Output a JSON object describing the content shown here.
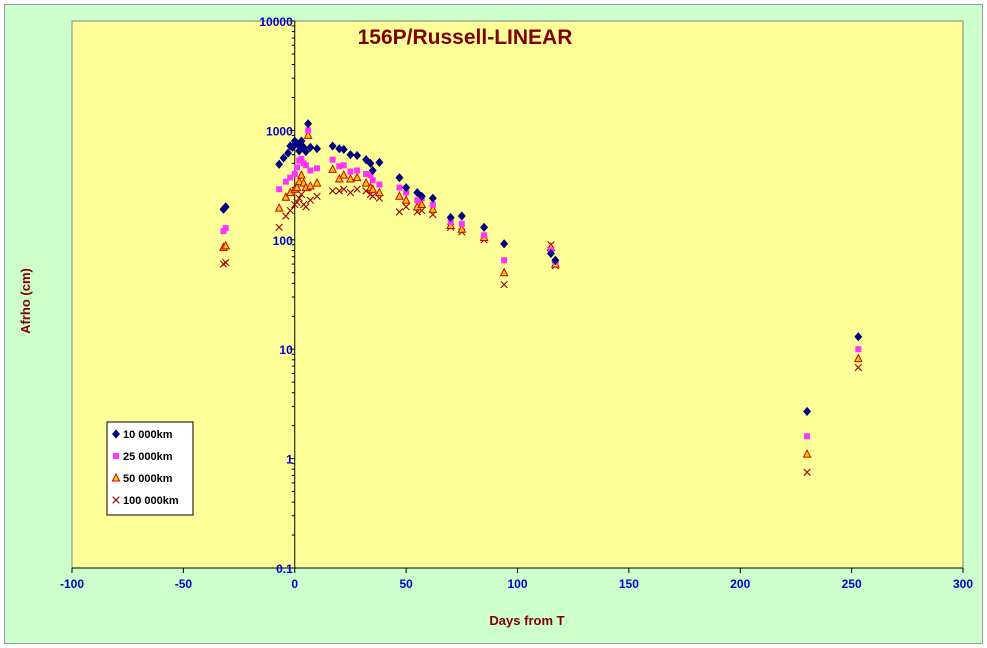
{
  "chart_data": {
    "type": "scatter",
    "title": "156P/Russell-LINEAR",
    "xlabel": "Days from  T",
    "ylabel": "Afrho (cm)",
    "xlim": [
      -100,
      300
    ],
    "ylim": [
      0.1,
      10000
    ],
    "yscale": "log",
    "x_ticks": [
      -100,
      -50,
      0,
      50,
      100,
      150,
      200,
      250,
      300
    ],
    "x_tick_labels": [
      "-100",
      "-50",
      "0",
      "50",
      "100",
      "150",
      "200",
      "250",
      "300"
    ],
    "y_ticks": [
      0.1,
      1,
      10,
      100,
      1000,
      10000
    ],
    "y_tick_labels": [
      "0.1",
      "1",
      "10",
      "100",
      "1000",
      "10000"
    ],
    "grid": false,
    "legend_position": "bottom-left",
    "colors": {
      "plot_background": "#ffff99",
      "chart_background": "#ccffcc",
      "title": "#800000",
      "tick_labels": "#0000cc"
    },
    "series": [
      {
        "name": "10 000km",
        "marker": "diamond",
        "color": "#000080",
        "points": [
          [
            -32,
            190
          ],
          [
            -31,
            200
          ],
          [
            -7,
            490
          ],
          [
            -5,
            560
          ],
          [
            -3,
            620
          ],
          [
            -2,
            720
          ],
          [
            -1,
            700
          ],
          [
            0,
            800
          ],
          [
            1,
            760
          ],
          [
            2,
            720
          ],
          [
            2,
            650
          ],
          [
            3,
            800
          ],
          [
            4,
            700
          ],
          [
            5,
            640
          ],
          [
            6,
            1150
          ],
          [
            7,
            700
          ],
          [
            10,
            680
          ],
          [
            17,
            720
          ],
          [
            20,
            680
          ],
          [
            22,
            670
          ],
          [
            25,
            600
          ],
          [
            28,
            590
          ],
          [
            32,
            540
          ],
          [
            34,
            500
          ],
          [
            35,
            430
          ],
          [
            38,
            510
          ],
          [
            47,
            370
          ],
          [
            50,
            300
          ],
          [
            55,
            270
          ],
          [
            57,
            250
          ],
          [
            62,
            240
          ],
          [
            70,
            160
          ],
          [
            75,
            165
          ],
          [
            85,
            130
          ],
          [
            94,
            92
          ],
          [
            115,
            75
          ],
          [
            117,
            65
          ],
          [
            230,
            2.7
          ],
          [
            253,
            13
          ]
        ]
      },
      {
        "name": "25 000km",
        "marker": "square",
        "color": "#ff33ff",
        "points": [
          [
            -32,
            120
          ],
          [
            -31,
            128
          ],
          [
            -7,
            290
          ],
          [
            -4,
            340
          ],
          [
            -2,
            370
          ],
          [
            0,
            400
          ],
          [
            1,
            460
          ],
          [
            2,
            530
          ],
          [
            3,
            550
          ],
          [
            4,
            500
          ],
          [
            5,
            480
          ],
          [
            6,
            1000
          ],
          [
            7,
            430
          ],
          [
            10,
            450
          ],
          [
            17,
            540
          ],
          [
            20,
            470
          ],
          [
            22,
            480
          ],
          [
            25,
            420
          ],
          [
            28,
            430
          ],
          [
            32,
            400
          ],
          [
            34,
            390
          ],
          [
            35,
            350
          ],
          [
            38,
            320
          ],
          [
            47,
            300
          ],
          [
            50,
            270
          ],
          [
            55,
            230
          ],
          [
            57,
            240
          ],
          [
            62,
            210
          ],
          [
            70,
            145
          ],
          [
            75,
            140
          ],
          [
            85,
            110
          ],
          [
            94,
            65
          ],
          [
            115,
            80
          ],
          [
            117,
            63
          ],
          [
            230,
            1.6
          ],
          [
            253,
            10
          ]
        ]
      },
      {
        "name": "50 000km",
        "marker": "triangle",
        "color": "#cc0000",
        "fill": "#ffcc00",
        "points": [
          [
            -32,
            85
          ],
          [
            -31,
            88
          ],
          [
            -7,
            195
          ],
          [
            -4,
            245
          ],
          [
            -2,
            270
          ],
          [
            0,
            290
          ],
          [
            1,
            300
          ],
          [
            2,
            340
          ],
          [
            3,
            390
          ],
          [
            4,
            330
          ],
          [
            5,
            300
          ],
          [
            6,
            900
          ],
          [
            7,
            310
          ],
          [
            10,
            330
          ],
          [
            17,
            440
          ],
          [
            20,
            360
          ],
          [
            22,
            390
          ],
          [
            25,
            360
          ],
          [
            28,
            370
          ],
          [
            32,
            330
          ],
          [
            34,
            300
          ],
          [
            35,
            290
          ],
          [
            38,
            270
          ],
          [
            47,
            250
          ],
          [
            50,
            230
          ],
          [
            55,
            200
          ],
          [
            57,
            210
          ],
          [
            62,
            190
          ],
          [
            70,
            135
          ],
          [
            75,
            125
          ],
          [
            85,
            105
          ],
          [
            94,
            50
          ],
          [
            115,
            85
          ],
          [
            117,
            60
          ],
          [
            230,
            1.1
          ],
          [
            253,
            8.2
          ]
        ]
      },
      {
        "name": "100 000km",
        "marker": "x",
        "color": "#990000",
        "points": [
          [
            -32,
            60
          ],
          [
            -31,
            62
          ],
          [
            -7,
            130
          ],
          [
            -4,
            165
          ],
          [
            -2,
            185
          ],
          [
            0,
            210
          ],
          [
            1,
            220
          ],
          [
            2,
            240
          ],
          [
            3,
            260
          ],
          [
            4,
            210
          ],
          [
            5,
            200
          ],
          [
            6,
            300
          ],
          [
            7,
            230
          ],
          [
            10,
            250
          ],
          [
            17,
            280
          ],
          [
            20,
            280
          ],
          [
            22,
            290
          ],
          [
            25,
            270
          ],
          [
            28,
            290
          ],
          [
            32,
            280
          ],
          [
            34,
            260
          ],
          [
            35,
            250
          ],
          [
            38,
            240
          ],
          [
            47,
            180
          ],
          [
            50,
            200
          ],
          [
            55,
            180
          ],
          [
            57,
            185
          ],
          [
            62,
            170
          ],
          [
            70,
            130
          ],
          [
            75,
            118
          ],
          [
            85,
            100
          ],
          [
            94,
            39
          ],
          [
            115,
            90
          ],
          [
            117,
            58
          ],
          [
            230,
            0.75
          ],
          [
            253,
            6.8
          ]
        ]
      }
    ]
  }
}
